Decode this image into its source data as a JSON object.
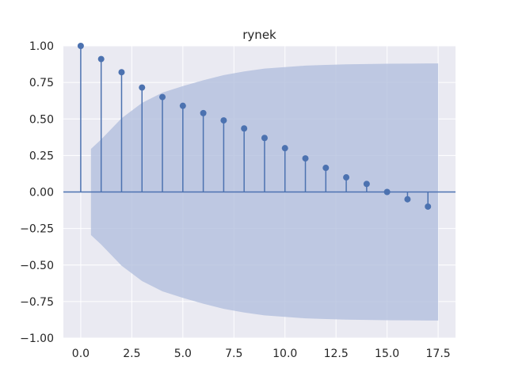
{
  "chart_data": {
    "type": "stem",
    "title": "rynek",
    "xlabel": "",
    "ylabel": "",
    "xlim": [
      -0.85,
      18.35
    ],
    "ylim": [
      -1.0,
      1.0
    ],
    "xticks": [
      0.0,
      2.5,
      5.0,
      7.5,
      10.0,
      12.5,
      15.0,
      17.5
    ],
    "xtick_labels": [
      "0.0",
      "2.5",
      "5.0",
      "7.5",
      "10.0",
      "12.5",
      "15.0",
      "17.5"
    ],
    "yticks": [
      1.0,
      0.75,
      0.5,
      0.25,
      0.0,
      -0.25,
      -0.5,
      -0.75,
      -1.0
    ],
    "ytick_labels": [
      "1.00",
      "0.75",
      "0.50",
      "0.25",
      "0.00",
      "−0.25",
      "−0.50",
      "−0.75",
      "−1.00"
    ],
    "grid": true,
    "lags": [
      0,
      1,
      2,
      3,
      4,
      5,
      6,
      7,
      8,
      9,
      10,
      11,
      12,
      13,
      14,
      15,
      16,
      17
    ],
    "values": [
      1.0,
      0.91,
      0.82,
      0.715,
      0.65,
      0.59,
      0.54,
      0.49,
      0.435,
      0.37,
      0.3,
      0.23,
      0.165,
      0.1,
      0.055,
      0.0,
      -0.05,
      -0.1
    ],
    "confidence_band": {
      "x": [
        0.5,
        1,
        2,
        3,
        4,
        5,
        6,
        7,
        8,
        9,
        10,
        11,
        12,
        13,
        14,
        15,
        16,
        17,
        17.5
      ],
      "upper": [
        0.295,
        0.36,
        0.505,
        0.61,
        0.68,
        0.725,
        0.765,
        0.8,
        0.825,
        0.845,
        0.855,
        0.865,
        0.87,
        0.874,
        0.876,
        0.878,
        0.879,
        0.88,
        0.88
      ]
    },
    "colors": {
      "stem": "#4c72b0",
      "band": "#b3bfdd",
      "plot_background": "#eaeaf2",
      "grid": "#ffffff",
      "text": "#262626"
    }
  }
}
